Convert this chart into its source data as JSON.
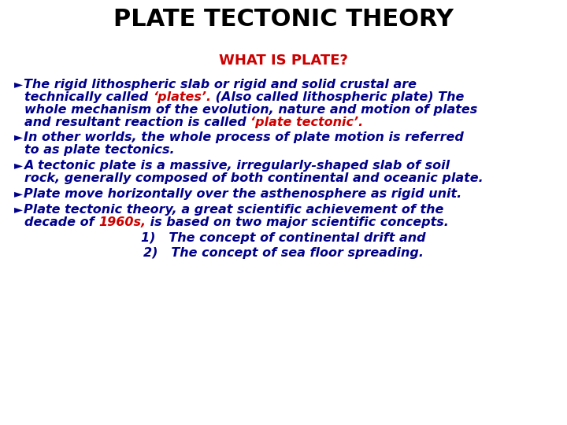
{
  "title": "PLATE TECTONIC THEORY",
  "subtitle": "WHAT IS PLATE?",
  "title_color": "#000000",
  "subtitle_color": "#cc0000",
  "body_color": "#00008B",
  "highlight_color": "#cc0000",
  "background_color": "#ffffff",
  "title_fontsize": 22,
  "subtitle_fontsize": 13,
  "body_fontsize": 11.5,
  "paragraphs": [
    {
      "bullet": true,
      "lines": [
        [
          {
            "text": "The rigid lithospheric slab or rigid and solid crustal are",
            "color": "#00008B"
          }
        ],
        [
          {
            "text": "technically called ",
            "color": "#00008B"
          },
          {
            "text": "‘plates’.",
            "color": "#cc0000"
          },
          {
            "text": " (Also called lithospheric plate) The",
            "color": "#00008B"
          }
        ],
        [
          {
            "text": "whole mechanism of the evolution, nature and motion of plates",
            "color": "#00008B"
          }
        ],
        [
          {
            "text": "and resultant reaction is called ",
            "color": "#00008B"
          },
          {
            "text": "‘plate tectonic’.",
            "color": "#cc0000"
          }
        ]
      ]
    },
    {
      "bullet": true,
      "lines": [
        [
          {
            "text": "In other worlds, the whole process of plate motion is referred",
            "color": "#00008B"
          }
        ],
        [
          {
            "text": "to as plate tectonics.",
            "color": "#00008B"
          }
        ]
      ]
    },
    {
      "bullet": true,
      "lines": [
        [
          {
            "text": "A tectonic plate is a massive, irregularly-shaped slab of soil",
            "color": "#00008B"
          }
        ],
        [
          {
            "text": "rock, generally composed of both continental and oceanic plate.",
            "color": "#00008B"
          }
        ]
      ]
    },
    {
      "bullet": true,
      "lines": [
        [
          {
            "text": "Plate move horizontally over the asthenosphere as rigid unit.",
            "color": "#00008B"
          }
        ]
      ]
    },
    {
      "bullet": true,
      "lines": [
        [
          {
            "text": "Plate tectonic theory, a great scientific achievement of the",
            "color": "#00008B"
          }
        ],
        [
          {
            "text": "decade of ",
            "color": "#00008B"
          },
          {
            "text": "1960s,",
            "color": "#cc0000"
          },
          {
            "text": " is based on two major scientific concepts.",
            "color": "#00008B"
          }
        ]
      ]
    },
    {
      "bullet": false,
      "center": true,
      "lines": [
        [
          {
            "text": "1)   The concept of continental drift and",
            "color": "#00008B"
          }
        ]
      ]
    },
    {
      "bullet": false,
      "center": true,
      "lines": [
        [
          {
            "text": "2)   The concept of sea floor spreading.",
            "color": "#00008B"
          }
        ]
      ]
    }
  ]
}
